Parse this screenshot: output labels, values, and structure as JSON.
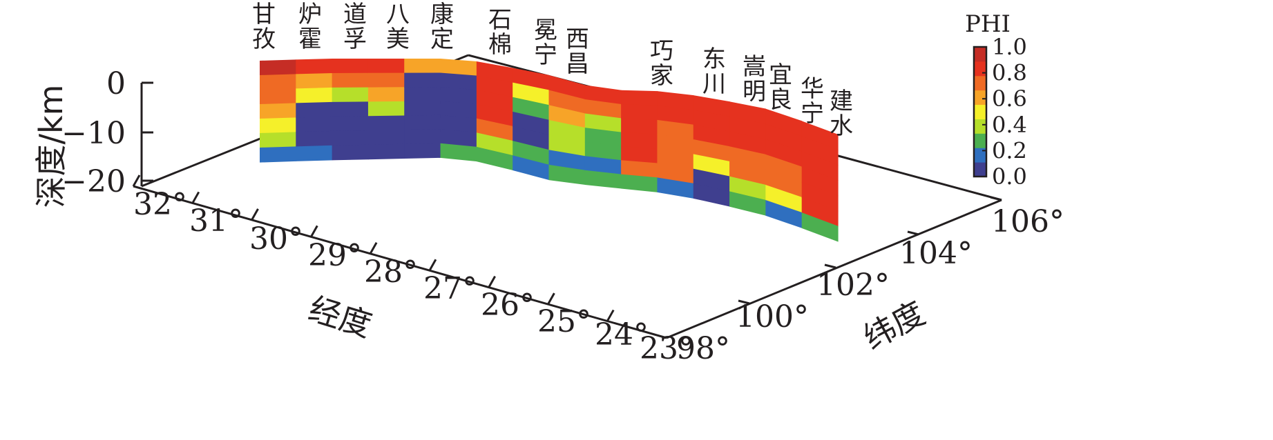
{
  "chart_data": {
    "type": "heatmap",
    "title": "",
    "colorbar": {
      "title": "PHI",
      "ticks": [
        "1.0",
        "0.8",
        "0.6",
        "0.4",
        "0.2",
        "0.0"
      ],
      "range": [
        0.0,
        1.0
      ],
      "colors": [
        "#3f3f8f",
        "#2f6fbf",
        "#4caf50",
        "#b6df2a",
        "#f5f02a",
        "#f7a428",
        "#ef6a24",
        "#e5321f",
        "#c52d25"
      ]
    },
    "axes": {
      "depth": {
        "label": "深度/km",
        "ticks": [
          "0",
          "−10",
          "−20"
        ],
        "range": [
          -20,
          0
        ]
      },
      "x": {
        "label": "经度",
        "ticks": [
          "32°",
          "31°",
          "30°",
          "29°",
          "28°",
          "27°",
          "26°",
          "25°",
          "24°",
          "23°"
        ]
      },
      "y": {
        "label": "纬度",
        "ticks": [
          "98°",
          "100°",
          "102°",
          "104°",
          "106°"
        ]
      }
    },
    "stations": [
      {
        "name": "甘孜",
        "chars": [
          "甘",
          "孜"
        ]
      },
      {
        "name": "炉霍",
        "chars": [
          "炉",
          "霍"
        ]
      },
      {
        "name": "道孚",
        "chars": [
          "道",
          "孚"
        ]
      },
      {
        "name": "八美",
        "chars": [
          "八",
          "美"
        ]
      },
      {
        "name": "康定",
        "chars": [
          "康",
          "定"
        ]
      },
      {
        "name": "石棉",
        "chars": [
          "石",
          "棉"
        ]
      },
      {
        "name": "冕宁",
        "chars": [
          "冕",
          "宁"
        ]
      },
      {
        "name": "西昌",
        "chars": [
          "西",
          "昌"
        ]
      },
      {
        "name": "巧家",
        "chars": [
          "巧",
          "家"
        ]
      },
      {
        "name": "东川",
        "chars": [
          "东",
          "川"
        ]
      },
      {
        "name": "嵩明",
        "chars": [
          "嵩",
          "明"
        ]
      },
      {
        "name": "宜良",
        "chars": [
          "宜",
          "良"
        ]
      },
      {
        "name": "华宁",
        "chars": [
          "华",
          "宁"
        ]
      },
      {
        "name": "建水",
        "chars": [
          "建",
          "水"
        ]
      }
    ],
    "profile": {
      "depth_levels_km": [
        0,
        -3,
        -6,
        -9,
        -12,
        -15,
        -18,
        -20
      ],
      "phi_columns": [
        [
          0.95,
          0.8,
          0.7,
          0.6,
          0.5,
          0.35,
          0.1
        ],
        [
          0.9,
          0.65,
          0.45,
          0.0,
          0.0,
          0.0,
          0.15
        ],
        [
          0.9,
          0.8,
          0.4,
          0.0,
          0.0,
          0.0,
          0.0
        ],
        [
          0.9,
          0.8,
          0.6,
          0.4,
          0.0,
          0.0,
          0.0
        ],
        [
          0.6,
          0.0,
          0.0,
          0.0,
          0.0,
          0.0,
          0.0
        ],
        [
          0.6,
          0.0,
          0.0,
          0.0,
          0.0,
          0.0,
          0.2
        ],
        [
          0.92,
          0.92,
          0.92,
          0.92,
          0.8,
          0.4,
          0.2
        ],
        [
          0.92,
          0.5,
          0.3,
          0.0,
          0.0,
          0.2,
          0.1
        ],
        [
          0.92,
          0.8,
          0.6,
          0.4,
          0.35,
          0.1,
          0.3
        ],
        [
          0.92,
          0.8,
          0.4,
          0.2,
          0.2,
          0.1,
          0.2
        ],
        [
          0.92,
          0.92,
          0.92,
          0.92,
          0.92,
          0.7,
          0.25
        ],
        [
          0.92,
          0.92,
          0.8,
          0.75,
          0.75,
          0.75,
          0.1
        ],
        [
          0.92,
          0.92,
          0.92,
          0.7,
          0.5,
          0.0,
          0.0
        ],
        [
          0.92,
          0.92,
          0.92,
          0.8,
          0.8,
          0.4,
          0.25
        ],
        [
          0.92,
          0.92,
          0.92,
          0.8,
          0.7,
          0.5,
          0.15
        ],
        [
          0.92,
          0.92,
          0.92,
          0.92,
          0.92,
          0.85,
          0.3
        ]
      ]
    }
  }
}
